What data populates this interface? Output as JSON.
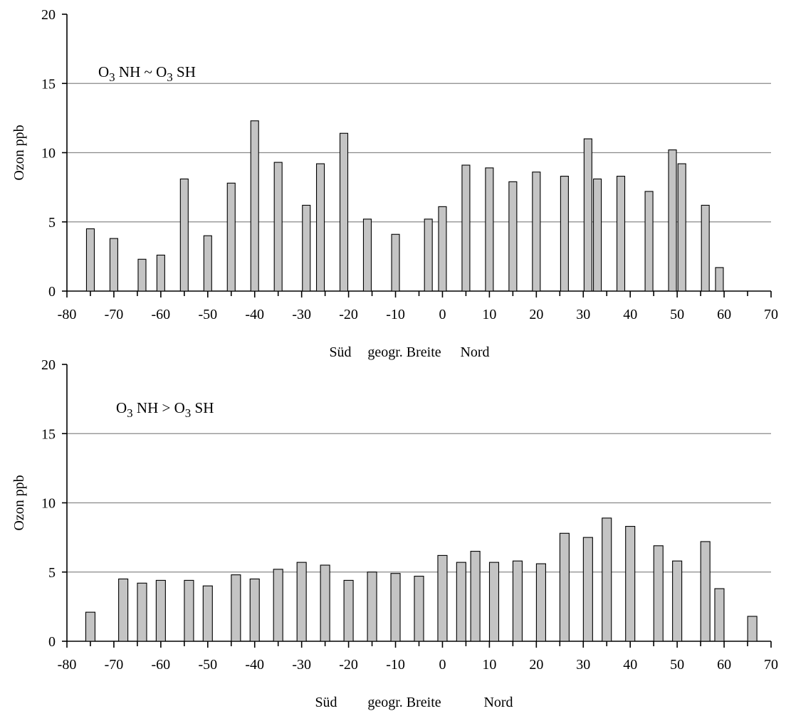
{
  "chart_data": [
    {
      "type": "bar",
      "annotation": {
        "a": "O",
        "a_sub": "3",
        "mid": " NH ~ O",
        "b_sub": "3",
        "end": " SH"
      },
      "xlabel": {
        "left": "Süd",
        "center": "geogr. Breite",
        "right": "Nord"
      },
      "ylabel": "Ozon ppb",
      "xlim": [
        -80,
        70
      ],
      "ylim": [
        0,
        20
      ],
      "xticks": [
        "-80",
        "-70",
        "-60",
        "-50",
        "-40",
        "-30",
        "-20",
        "-10",
        "0",
        "10",
        "20",
        "30",
        "40",
        "50",
        "60",
        "70"
      ],
      "yticks": [
        "0",
        "5",
        "10",
        "15",
        "20"
      ],
      "grid": true,
      "x": [
        -75,
        -70,
        -64,
        -60,
        -55,
        -50,
        -45,
        -40,
        -35,
        -29,
        -26,
        -21,
        -16,
        -10,
        -3,
        0,
        5,
        10,
        15,
        20,
        26,
        31,
        33,
        38,
        44,
        49,
        51,
        56,
        59
      ],
      "values": [
        4.5,
        3.8,
        2.3,
        2.6,
        8.1,
        4.0,
        7.8,
        12.3,
        9.3,
        6.2,
        9.2,
        11.4,
        5.2,
        4.1,
        5.2,
        6.1,
        9.1,
        8.9,
        7.9,
        8.6,
        8.3,
        11.0,
        8.1,
        8.3,
        7.2,
        10.2,
        9.2,
        6.2,
        1.7
      ]
    },
    {
      "type": "bar",
      "annotation": {
        "a": "O",
        "a_sub": "3",
        "mid": " NH > O",
        "b_sub": "3",
        "end": " SH"
      },
      "xlabel": {
        "left": "Süd",
        "center": "geogr. Breite",
        "right": "Nord"
      },
      "ylabel": "Ozon ppb",
      "xlim": [
        -80,
        70
      ],
      "ylim": [
        0,
        20
      ],
      "xticks": [
        "-80",
        "-70",
        "-60",
        "-50",
        "-40",
        "-30",
        "-20",
        "-10",
        "0",
        "10",
        "20",
        "30",
        "40",
        "50",
        "60",
        "70"
      ],
      "yticks": [
        "0",
        "5",
        "10",
        "15",
        "20"
      ],
      "grid": true,
      "x": [
        -75,
        -68,
        -64,
        -60,
        -54,
        -50,
        -44,
        -40,
        -35,
        -30,
        -25,
        -20,
        -15,
        -10,
        -5,
        0,
        4,
        7,
        11,
        16,
        21,
        26,
        31,
        35,
        40,
        46,
        50,
        56,
        59,
        66
      ],
      "values": [
        2.1,
        4.5,
        4.2,
        4.4,
        4.4,
        4.0,
        4.8,
        4.5,
        5.2,
        5.7,
        5.5,
        4.4,
        5.0,
        4.9,
        4.7,
        6.2,
        5.7,
        6.5,
        5.7,
        5.8,
        5.6,
        7.8,
        7.5,
        8.9,
        8.3,
        6.9,
        5.8,
        7.2,
        3.8,
        1.8
      ]
    }
  ]
}
